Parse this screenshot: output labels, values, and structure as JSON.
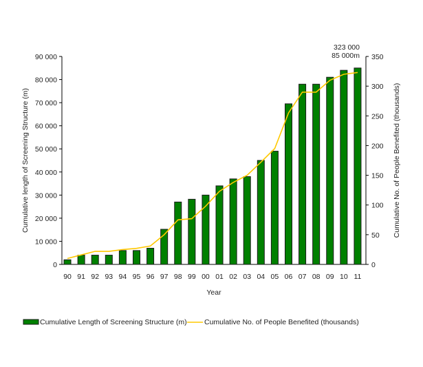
{
  "chart_data": {
    "type": "bar+line",
    "title": "",
    "xlabel": "Year",
    "ylabel_left": "Cumulative length of Screening Structure (m)",
    "ylabel_right": "Cumulative No. of People Benefited (thousands)",
    "categories": [
      "90",
      "91",
      "92",
      "93",
      "94",
      "95",
      "96",
      "97",
      "98",
      "99",
      "00",
      "01",
      "02",
      "03",
      "04",
      "05",
      "06",
      "07",
      "08",
      "09",
      "10",
      "11"
    ],
    "ylim_left": [
      0,
      90000
    ],
    "yticks_left": [
      "0",
      "10 000",
      "20 000",
      "30 000",
      "40 000",
      "50 000",
      "60 000",
      "70 000",
      "80 000",
      "90 000"
    ],
    "ylim_right": [
      0,
      350
    ],
    "yticks_right": [
      "0",
      "50",
      "100",
      "150",
      "200",
      "250",
      "300",
      "350"
    ],
    "grid": false,
    "legend_placement": "bottom",
    "series": [
      {
        "name": "Cumulative Length of Screening Structure (m)",
        "type": "bar",
        "axis": "left",
        "color": "#008000",
        "values": [
          2000,
          4000,
          4000,
          4000,
          6000,
          6000,
          7000,
          15200,
          27000,
          28200,
          30000,
          34000,
          37000,
          38000,
          45000,
          49000,
          69500,
          78000,
          78000,
          81000,
          84000,
          85000
        ]
      },
      {
        "name": "Cumulative No. of People Benefited (thousands)",
        "type": "line",
        "axis": "right",
        "color": "#FFC800",
        "values": [
          10,
          16,
          22,
          22,
          25,
          27,
          31,
          50,
          75,
          77,
          98,
          123,
          138,
          150,
          172,
          195,
          255,
          290,
          290,
          310,
          320,
          323
        ]
      }
    ],
    "annotations": [
      "323 000",
      "85 000m"
    ]
  }
}
